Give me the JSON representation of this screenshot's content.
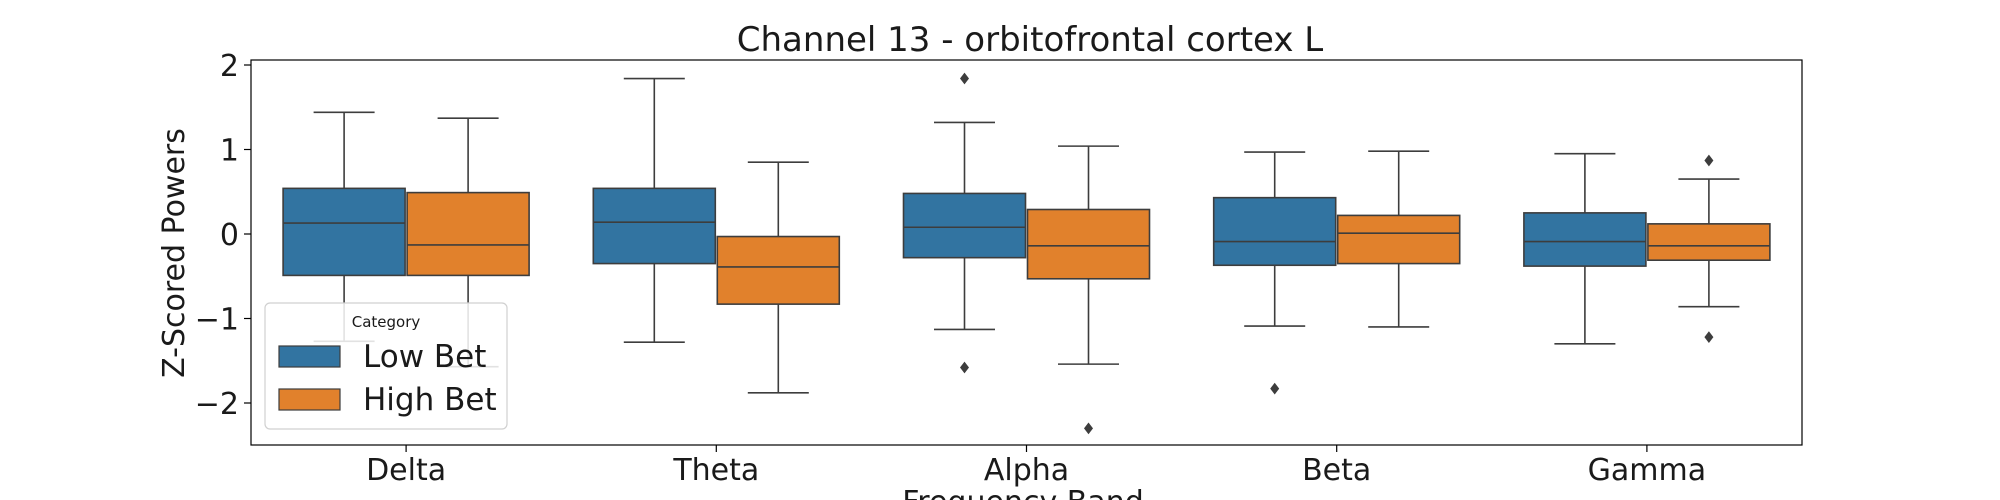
{
  "chart_data": {
    "type": "box",
    "title": "Channel 13 - orbitofrontal cortex L",
    "xlabel": "Frequency Band",
    "ylabel": "Z-Scored Powers",
    "ylim": [
      -2.5,
      2.07
    ],
    "yticks": [
      {
        "value": 2,
        "label": "2"
      },
      {
        "value": 1,
        "label": "1"
      },
      {
        "value": 0,
        "label": "0"
      },
      {
        "value": -1,
        "label": "−1"
      },
      {
        "value": -2,
        "label": "−2"
      }
    ],
    "categories": [
      "Delta",
      "Theta",
      "Alpha",
      "Beta",
      "Gamma"
    ],
    "legend": {
      "title": "Category",
      "position": "lower-left"
    },
    "series": [
      {
        "name": "Low Bet",
        "color": "#3274a1",
        "boxes": [
          {
            "whisker_low": -1.27,
            "q1": -0.49,
            "median": 0.13,
            "q3": 0.54,
            "whisker_high": 1.44,
            "outliers": []
          },
          {
            "whisker_low": -1.28,
            "q1": -0.35,
            "median": 0.14,
            "q3": 0.54,
            "whisker_high": 1.84,
            "outliers": []
          },
          {
            "whisker_low": -1.13,
            "q1": -0.28,
            "median": 0.08,
            "q3": 0.48,
            "whisker_high": 1.32,
            "outliers": [
              1.84,
              -1.58
            ]
          },
          {
            "whisker_low": -1.09,
            "q1": -0.37,
            "median": -0.09,
            "q3": 0.43,
            "whisker_high": 0.97,
            "outliers": [
              -1.83
            ]
          },
          {
            "whisker_low": -1.3,
            "q1": -0.38,
            "median": -0.09,
            "q3": 0.25,
            "whisker_high": 0.95,
            "outliers": []
          }
        ]
      },
      {
        "name": "High Bet",
        "color": "#e1812c",
        "boxes": [
          {
            "whisker_low": -1.57,
            "q1": -0.49,
            "median": -0.13,
            "q3": 0.49,
            "whisker_high": 1.37,
            "outliers": []
          },
          {
            "whisker_low": -1.88,
            "q1": -0.83,
            "median": -0.39,
            "q3": -0.03,
            "whisker_high": 0.85,
            "outliers": []
          },
          {
            "whisker_low": -1.54,
            "q1": -0.53,
            "median": -0.14,
            "q3": 0.29,
            "whisker_high": 1.04,
            "outliers": [
              -2.3
            ]
          },
          {
            "whisker_low": -1.1,
            "q1": -0.35,
            "median": 0.01,
            "q3": 0.22,
            "whisker_high": 0.98,
            "outliers": []
          },
          {
            "whisker_low": -0.86,
            "q1": -0.31,
            "median": -0.14,
            "q3": 0.12,
            "whisker_high": 0.65,
            "outliers": [
              0.87,
              -1.22
            ]
          }
        ]
      }
    ]
  }
}
